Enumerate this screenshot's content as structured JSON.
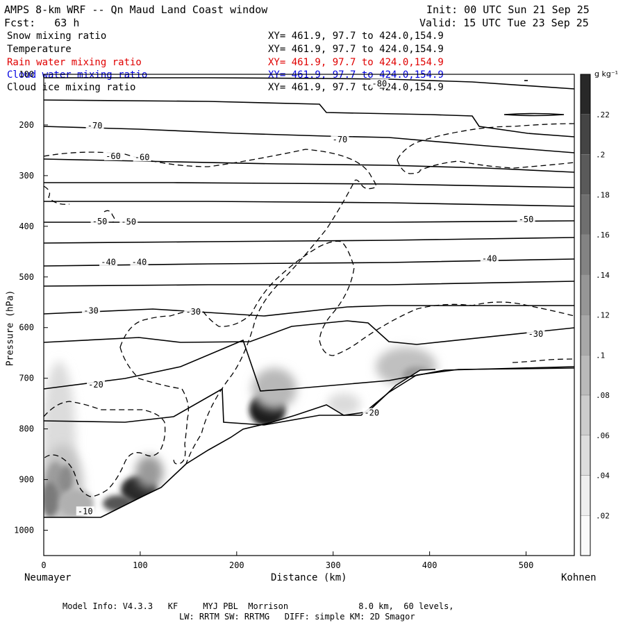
{
  "header": {
    "title": "AMPS 8-km WRF -- Qn Maud Land Coast window",
    "init": "Init: 00 UTC Sun 21 Sep 25",
    "fcst": "Fcst:   63 h",
    "valid": "Valid: 15 UTC Tue 23 Sep 25"
  },
  "legend": [
    {
      "name": "Snow mixing ratio",
      "xy": "XY= 461.9, 97.7 to 424.0,154.9",
      "color": "#000000"
    },
    {
      "name": "Temperature",
      "xy": "XY= 461.9, 97.7 to 424.0,154.9",
      "color": "#000000"
    },
    {
      "name": "Rain water mixing ratio",
      "xy": "XY= 461.9, 97.7 to 424.0,154.9",
      "color": "#e00000"
    },
    {
      "name": "Cloud water mixing ratio",
      "xy": "XY= 461.9, 97.7 to 424.0,154.9",
      "color": "#0000e0"
    },
    {
      "name": "Cloud ice mixing ratio",
      "xy": "XY= 461.9, 97.7 to 424.0,154.9",
      "color": "#000000"
    }
  ],
  "axes": {
    "ylabel": "Pressure (hPa)",
    "xlabel": "Distance (km)",
    "left_station": "Neumayer",
    "right_station": "Kohnen"
  },
  "colorbar": {
    "unit": "g kg⁻¹",
    "ticks": [
      ".22",
      ".2",
      ".18",
      ".16",
      ".14",
      ".12",
      ".1",
      ".08",
      ".06",
      ".04",
      ".02"
    ]
  },
  "footer": {
    "line1": "Model Info: V4.3.3   KF     MYJ PBL  Morrison              8.0 km,  60 levels,",
    "line2": "LW: RRTM SW: RRTMG   DIFF: simple KM: 2D Smagor"
  },
  "chart_data": {
    "type": "contour",
    "title": "AMPS 8-km WRF -- Qn Maud Land Coast window",
    "xlabel": "Distance (km)",
    "ylabel": "Pressure (hPa)",
    "xlim": [
      0,
      550
    ],
    "ylim": [
      1050,
      100
    ],
    "xticks": [
      0,
      100,
      200,
      300,
      400,
      500
    ],
    "yticks": [
      100,
      200,
      300,
      400,
      500,
      600,
      700,
      800,
      900,
      1000
    ],
    "temperature_labels": [
      {
        "text": "-80",
        "x": 348,
        "p": 120
      },
      {
        "text": "-70",
        "x": 53,
        "p": 203
      },
      {
        "text": "-70",
        "x": 307,
        "p": 230
      },
      {
        "text": "-60",
        "x": 72,
        "p": 263
      },
      {
        "text": "-60",
        "x": 102,
        "p": 265
      },
      {
        "text": "-50",
        "x": 58,
        "p": 392
      },
      {
        "text": "-50",
        "x": 88,
        "p": 393
      },
      {
        "text": "-50",
        "x": 500,
        "p": 388
      },
      {
        "text": "-40",
        "x": 67,
        "p": 472
      },
      {
        "text": "-40",
        "x": 99,
        "p": 472
      },
      {
        "text": "-40",
        "x": 462,
        "p": 465
      },
      {
        "text": "-30",
        "x": 49,
        "p": 568
      },
      {
        "text": "-30",
        "x": 155,
        "p": 570
      },
      {
        "text": "-30",
        "x": 510,
        "p": 614
      },
      {
        "text": "-20",
        "x": 54,
        "p": 714
      },
      {
        "text": "-20",
        "x": 340,
        "p": 770
      },
      {
        "text": "-10",
        "x": 43,
        "p": 964
      }
    ],
    "units": "g kg-1"
  }
}
